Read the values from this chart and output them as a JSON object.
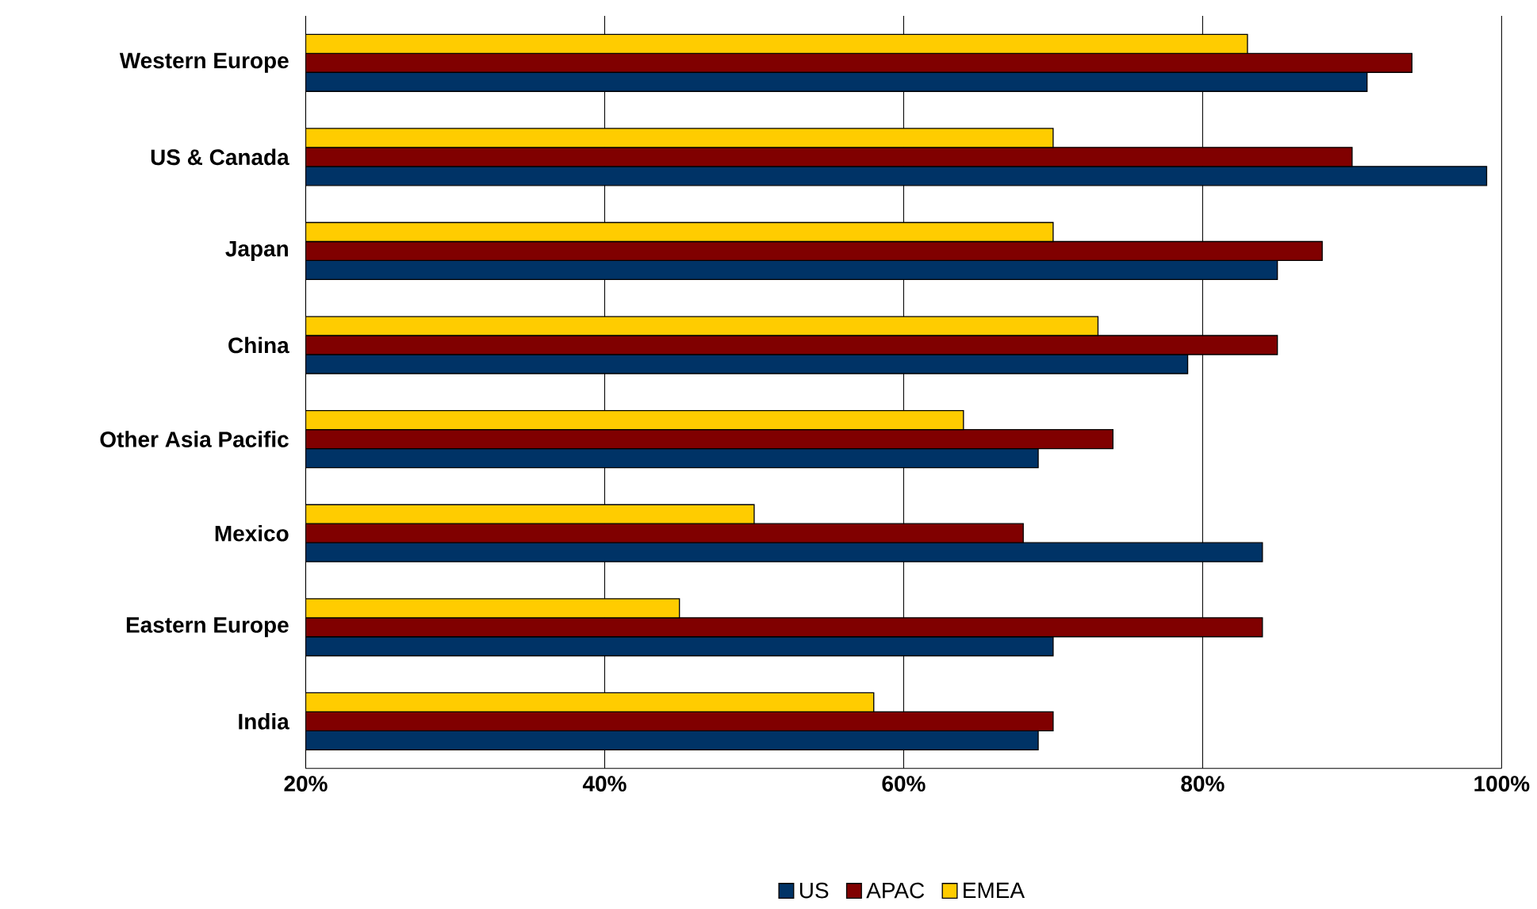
{
  "chart_data": {
    "type": "bar",
    "orientation": "horizontal",
    "categories": [
      "Western Europe",
      "US & Canada",
      "Japan",
      "China",
      "Other Asia Pacific",
      "Mexico",
      "Eastern Europe",
      "India"
    ],
    "series": [
      {
        "name": "US",
        "color": "#003366",
        "values": [
          91,
          99,
          85,
          79,
          69,
          84,
          70,
          69
        ]
      },
      {
        "name": "APAC",
        "color": "#800000",
        "values": [
          94,
          90,
          88,
          85,
          74,
          68,
          84,
          70
        ]
      },
      {
        "name": "EMEA",
        "color": "#ffcc00",
        "values": [
          83,
          70,
          70,
          73,
          64,
          50,
          45,
          58
        ]
      }
    ],
    "xlim": [
      20,
      100
    ],
    "xticks": [
      {
        "value": 20,
        "label": "20%"
      },
      {
        "value": 40,
        "label": "40%"
      },
      {
        "value": 60,
        "label": "60%"
      },
      {
        "value": 80,
        "label": "80%"
      },
      {
        "value": 100,
        "label": "100%"
      }
    ],
    "grid": "x",
    "legend": "bottom"
  }
}
